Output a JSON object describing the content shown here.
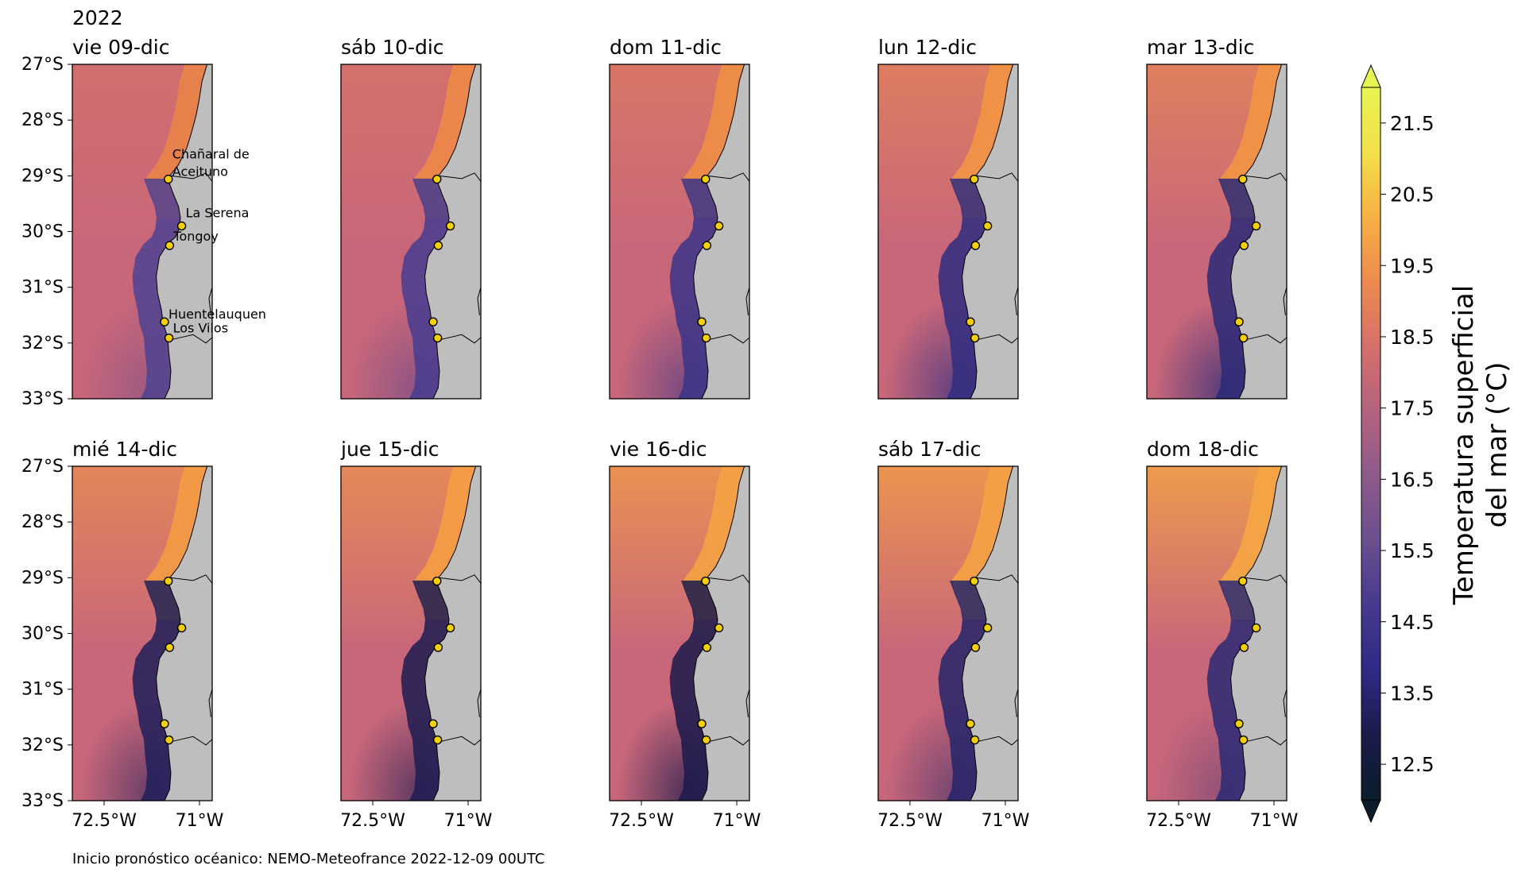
{
  "figure": {
    "year": "2022",
    "footnote": "Inicio pronóstico océanico: NEMO-Meteofrance 2022-12-09 00UTC"
  },
  "panels": [
    {
      "title": "vie 09-dic",
      "coast_color": "#e8834a",
      "shelf_color": "#4f4290",
      "north_warm": 0.25,
      "south_cold": 0.35,
      "show_labels": true
    },
    {
      "title": "sáb 10-dic",
      "coast_color": "#ec874a",
      "shelf_color": "#463c90",
      "north_warm": 0.3,
      "south_cold": 0.45,
      "show_labels": false
    },
    {
      "title": "dom 11-dic",
      "coast_color": "#ee8c48",
      "shelf_color": "#3a3488",
      "north_warm": 0.4,
      "south_cold": 0.55,
      "show_labels": false
    },
    {
      "title": "lun 12-dic",
      "coast_color": "#f09246",
      "shelf_color": "#2f2d80",
      "north_warm": 0.5,
      "south_cold": 0.65,
      "show_labels": false
    },
    {
      "title": "mar 13-dic",
      "coast_color": "#f09446",
      "shelf_color": "#2a2a78",
      "north_warm": 0.55,
      "south_cold": 0.7,
      "show_labels": false
    },
    {
      "title": "mié 14-dic",
      "coast_color": "#f29a44",
      "shelf_color": "#1f1f5a",
      "north_warm": 0.6,
      "south_cold": 0.55,
      "show_labels": false
    },
    {
      "title": "jue 15-dic",
      "coast_color": "#f39c44",
      "shelf_color": "#1c1c52",
      "north_warm": 0.65,
      "south_cold": 0.6,
      "show_labels": false
    },
    {
      "title": "vie 16-dic",
      "coast_color": "#f3a044",
      "shelf_color": "#1a1a4c",
      "north_warm": 0.75,
      "south_cold": 0.7,
      "show_labels": false
    },
    {
      "title": "sáb 17-dic",
      "coast_color": "#f3a044",
      "shelf_color": "#25246a",
      "north_warm": 0.8,
      "south_cold": 0.5,
      "show_labels": false
    },
    {
      "title": "dom 18-dic",
      "coast_color": "#f4a445",
      "shelf_color": "#2c2a74",
      "north_warm": 0.85,
      "south_cold": 0.35,
      "show_labels": false
    }
  ],
  "axes": {
    "lat_ticks": [
      "27°S",
      "28°S",
      "29°S",
      "30°S",
      "31°S",
      "32°S",
      "33°S"
    ],
    "lon_ticks": [
      "72.5°W",
      "71°W"
    ],
    "lat_range": [
      -33,
      -27
    ],
    "lon_range": [
      -73.0,
      -70.8
    ],
    "lon_tick_values": [
      -72.5,
      -71.0
    ]
  },
  "locations": [
    {
      "name": "Chañaral de Aceituno",
      "label_lines": [
        "Chañaral de",
        "Aceituno"
      ],
      "lat": -29.06,
      "lon": -71.49
    },
    {
      "name": "La Serena",
      "label_lines": [
        "La Serena"
      ],
      "lat": -29.9,
      "lon": -71.28
    },
    {
      "name": "Tongoy",
      "label_lines": [
        "Tongoy"
      ],
      "lat": -30.25,
      "lon": -71.47
    },
    {
      "name": "Huentelauquen",
      "label_lines": [
        "Huentelauquen"
      ],
      "lat": -31.62,
      "lon": -71.55
    },
    {
      "name": "Los Vilos",
      "label_lines": [
        "Los Vilos"
      ],
      "lat": -31.91,
      "lon": -71.48
    }
  ],
  "colorbar": {
    "label_line1": "Temperatura superficial",
    "label_line2": "del mar (°C)",
    "min": 12.0,
    "max": 22.0,
    "ticks": [
      "21.5",
      "20.5",
      "19.5",
      "18.5",
      "17.5",
      "16.5",
      "15.5",
      "14.5",
      "13.5",
      "12.5"
    ],
    "tick_values": [
      21.5,
      20.5,
      19.5,
      18.5,
      17.5,
      16.5,
      15.5,
      14.5,
      13.5,
      12.5
    ],
    "colormap": [
      "#0b1d2a",
      "#1a1b4a",
      "#2d2a86",
      "#47398e",
      "#6a4f8f",
      "#8e5a8a",
      "#b4637f",
      "#d66f6a",
      "#ee8a4f",
      "#f7b043",
      "#f3e04a",
      "#e7f552"
    ],
    "extend": "both"
  },
  "colors": {
    "land": "#bebebe",
    "ocean_offshore": "#c8677a",
    "marker_fill": "#f5d000",
    "marker_edge": "#000000"
  }
}
